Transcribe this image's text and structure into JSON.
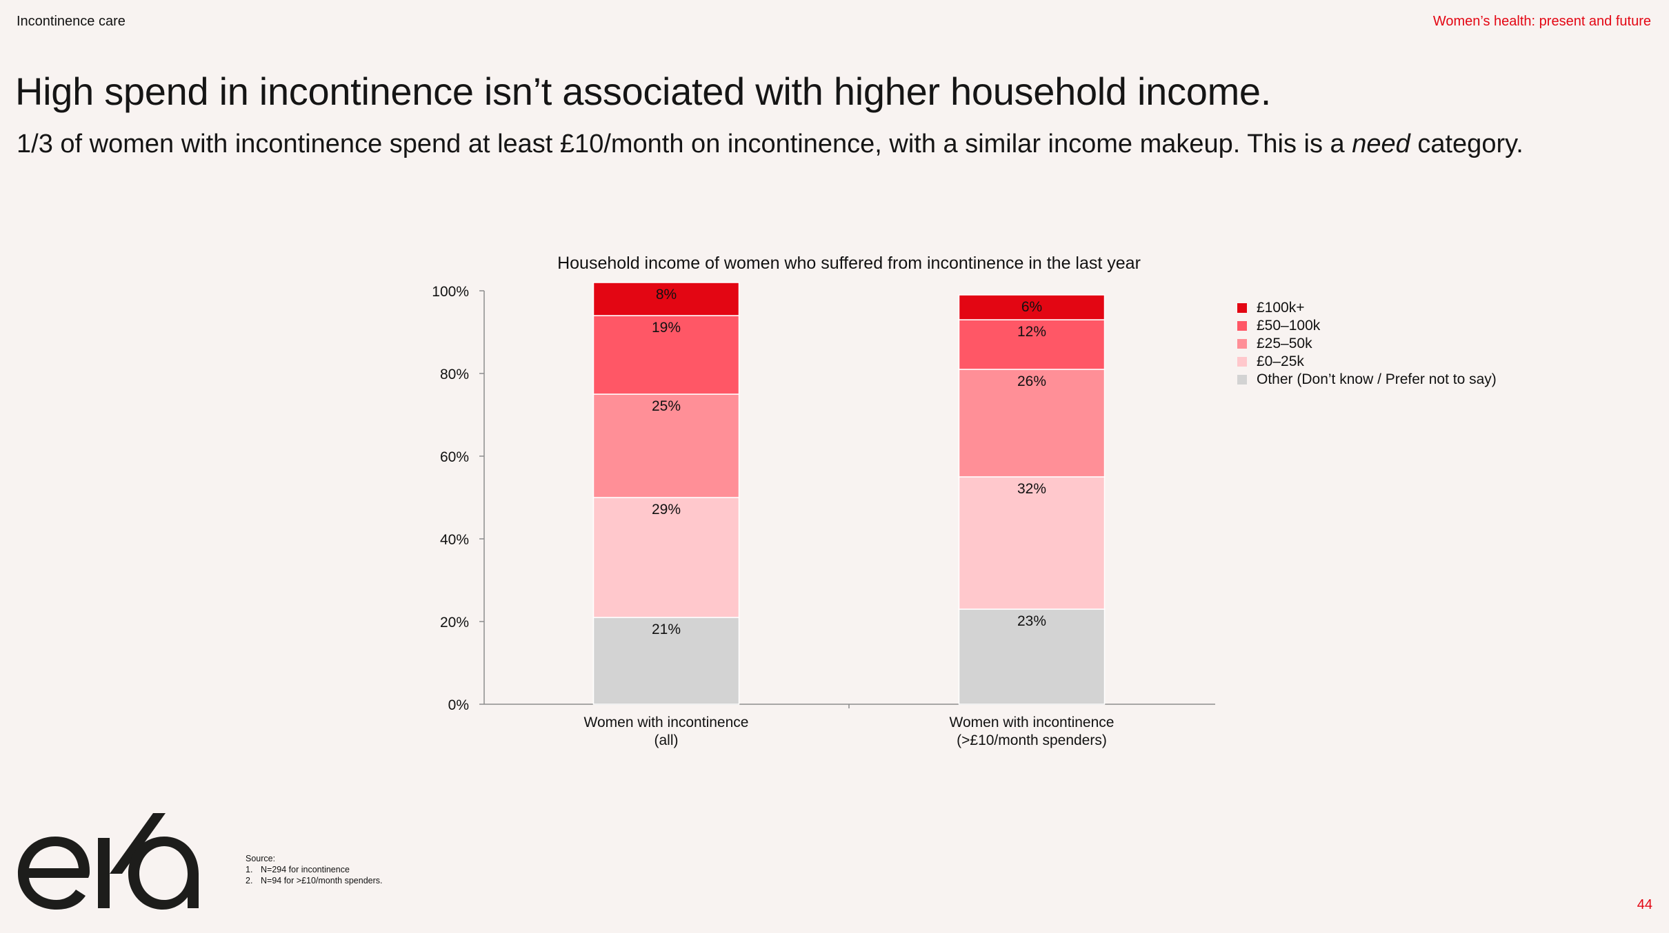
{
  "header": {
    "section": "Incontinence care",
    "deck_title": "Women’s health: present and future"
  },
  "headline": "High spend in incontinence isn’t associated with higher household income.",
  "subhead": {
    "before": "1/3 of women with incontinence spend at least £10/month on incontinence, with a similar income makeup. This is a ",
    "emphasis": "need",
    "after": " category."
  },
  "chart_data": {
    "type": "bar",
    "stacked": true,
    "title": "Household income of women who suffered from incontinence in the last year",
    "categories": [
      [
        "Women with incontinence",
        "(all)"
      ],
      [
        "Women with incontinence",
        "(>£10/month spenders)"
      ]
    ],
    "ylim": [
      0,
      100
    ],
    "yticks": [
      "0%",
      "20%",
      "40%",
      "60%",
      "80%",
      "100%"
    ],
    "series": [
      {
        "name": "Other (Don’t know / Prefer not to say)",
        "color": "#d3d3d3",
        "values": [
          21,
          23
        ]
      },
      {
        "name": "£0–25k",
        "color": "#ffc8cc",
        "values": [
          29,
          32
        ]
      },
      {
        "name": "£25–50k",
        "color": "#ff8f97",
        "values": [
          25,
          26
        ]
      },
      {
        "name": "£50–100k",
        "color": "#ff5766",
        "values": [
          19,
          12
        ]
      },
      {
        "name": "£100k+",
        "color": "#e30613",
        "values": [
          8,
          6
        ]
      }
    ],
    "legend_order": [
      "£100k+",
      "£50–100k",
      "£25–50k",
      "£0–25k",
      "Other (Don’t know / Prefer not to say)"
    ],
    "legend_position": "right"
  },
  "logo": {
    "text": "eka"
  },
  "notes": {
    "source_label": "Source:",
    "items": [
      {
        "num": "1.",
        "text": "N=294 for incontinence"
      },
      {
        "num": "2.",
        "text": "N=94 for >£10/month spenders."
      }
    ]
  },
  "page_number": "44"
}
